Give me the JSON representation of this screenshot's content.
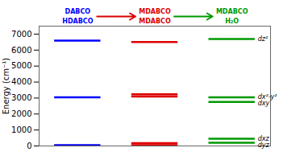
{
  "chart_data": {
    "type": "levels",
    "ylabel": "Energy (cm⁻¹)",
    "ylim": [
      0,
      7500
    ],
    "yticks": [
      0,
      1000,
      2000,
      3000,
      4000,
      5000,
      6000,
      7000
    ],
    "series": [
      {
        "header": [
          "DABCO",
          "HDABCO"
        ],
        "color": "#0000ff",
        "values": [
          6600,
          3050,
          50
        ]
      },
      {
        "header": [
          "MDABCO",
          "MDABCO"
        ],
        "color": "#dd0000",
        "values": [
          50,
          180,
          3100,
          3230,
          6500
        ]
      },
      {
        "header": [
          "MDABCO",
          "H₂O"
        ],
        "color": "#009900",
        "values": [
          6700,
          3050,
          2750,
          450,
          200
        ],
        "level_labels": [
          "dz²",
          "dx²-y²",
          "dxy",
          "dxz",
          "dyz"
        ]
      }
    ]
  }
}
